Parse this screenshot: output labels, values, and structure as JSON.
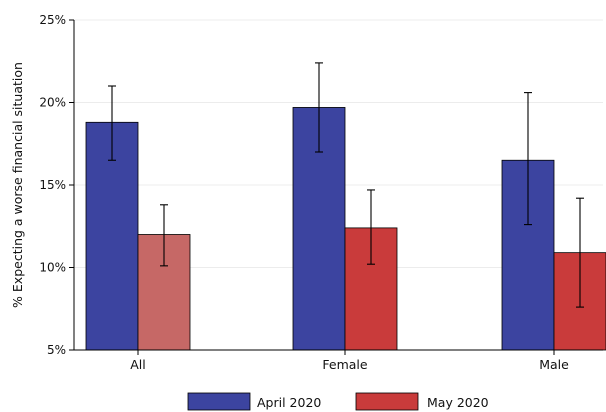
{
  "chart_data": {
    "type": "bar",
    "title": "",
    "xlabel": "",
    "ylabel": "% Expecting a worse financial situation",
    "categories": [
      "All",
      "Female",
      "Male"
    ],
    "ylim": [
      5,
      25
    ],
    "yticks": [
      5,
      10,
      15,
      20,
      25
    ],
    "ytick_labels": [
      "5%",
      "10%",
      "15%",
      "20%",
      "25%"
    ],
    "grid": true,
    "legend_position": "bottom",
    "series": [
      {
        "name": "April 2020",
        "color": "#3c44a0",
        "values": [
          18.8,
          19.7,
          16.5
        ],
        "ci_low": [
          16.5,
          17.0,
          12.6
        ],
        "ci_high": [
          21.0,
          22.4,
          20.6
        ]
      },
      {
        "name": "May 2020",
        "color": "#c93b3b",
        "bar_colors": [
          "#c66866",
          "#c93b3b",
          "#c93b3b"
        ],
        "values": [
          12.0,
          12.4,
          10.9
        ],
        "ci_low": [
          10.1,
          10.2,
          7.6
        ],
        "ci_high": [
          13.8,
          14.7,
          14.2
        ]
      }
    ]
  }
}
